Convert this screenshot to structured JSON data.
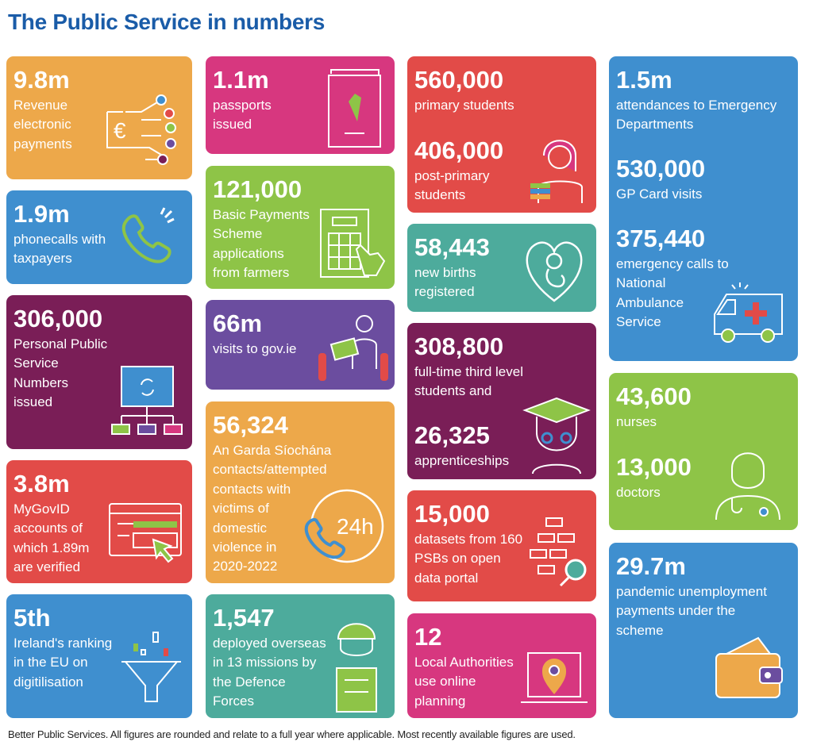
{
  "title": "The Public Service in numbers",
  "footer": "Better Public Services. All figures are rounded and relate to a full year where applicable. Most recently available figures are used.",
  "colors": {
    "title": "#1a5ca8",
    "orange": "#eda84a",
    "blue": "#3f8fcf",
    "purple": "#7a1e57",
    "red": "#e24b48",
    "pink": "#d7377f",
    "green": "#8ec447",
    "violet": "#6b4d9f",
    "teal": "#4dab9c"
  },
  "cards": {
    "revenue": {
      "value": "9.8m",
      "label": "Revenue\nelectronic\npayments",
      "icon": "euro-circuit-icon"
    },
    "phone": {
      "value": "1.9m",
      "label": "phonecalls with\ntaxpayers",
      "icon": "phone-ringing-icon"
    },
    "pps": {
      "value": "306,000",
      "label": "Personal Public\nService\nNumbers\nissued",
      "icon": "folder-network-icon"
    },
    "mygovid": {
      "value": "3.8m",
      "label": "MyGovID\naccounts of\nwhich 1.89m\nare verified",
      "icon": "browser-cursor-icon"
    },
    "ranking": {
      "value": "5th",
      "label": "Ireland's ranking\nin the EU on\ndigitilisation",
      "icon": "funnel-icon"
    },
    "passports": {
      "value": "1.1m",
      "label": "passports\nissued",
      "icon": "passport-harp-icon"
    },
    "bps": {
      "value": "121,000",
      "label": "Basic Payments\nScheme\napplications\nfrom farmers",
      "icon": "form-touch-icon"
    },
    "govie": {
      "value": "66m",
      "label": "visits to gov.ie",
      "icon": "person-laptop-icon"
    },
    "garda": {
      "value": "56,324",
      "label": "An Garda Síochána\ncontacts/attempted\ncontacts with\nvictims of\ndomestic\nviolence in\n2020-2022",
      "icon": "phone-24h-icon",
      "icon_text": "24h"
    },
    "defence": {
      "value": "1,547",
      "label": "deployed overseas\nin 13 missions by\nthe Defence\nForces",
      "icon": "soldier-icon"
    },
    "students": {
      "value": "560,000",
      "label": "primary students",
      "value2": "406,000",
      "label2": "post-primary\nstudents",
      "icon": "student-books-icon"
    },
    "births": {
      "value": "58,443",
      "label": "new births\nregistered",
      "icon": "baby-heart-icon"
    },
    "thirdlevel": {
      "value": "308,800",
      "label": "full-time third level\nstudents and",
      "value2": "26,325",
      "label2": "apprenticeships",
      "icon": "graduate-icon"
    },
    "datasets": {
      "value": "15,000",
      "label": "datasets from 160\nPSBs on open\ndata portal",
      "icon": "data-search-icon"
    },
    "planning": {
      "value": "12",
      "label": "Local Authorities\nuse online\nplanning",
      "icon": "laptop-pin-icon"
    },
    "health": {
      "value": "1.5m",
      "label": "attendances to Emergency\nDepartments",
      "value2": "530,000",
      "label2": "GP Card visits",
      "value3": "375,440",
      "label3": "emergency calls to\nNational\nAmbulance\nService",
      "icon": "ambulance-icon"
    },
    "nurses": {
      "value": "43,600",
      "label": "nurses",
      "value2": "13,000",
      "label2": "doctors",
      "icon": "doctor-icon"
    },
    "pandemic": {
      "value": "29.7m",
      "label": "pandemic unemployment\npayments under the\nscheme",
      "icon": "wallet-icon"
    }
  }
}
